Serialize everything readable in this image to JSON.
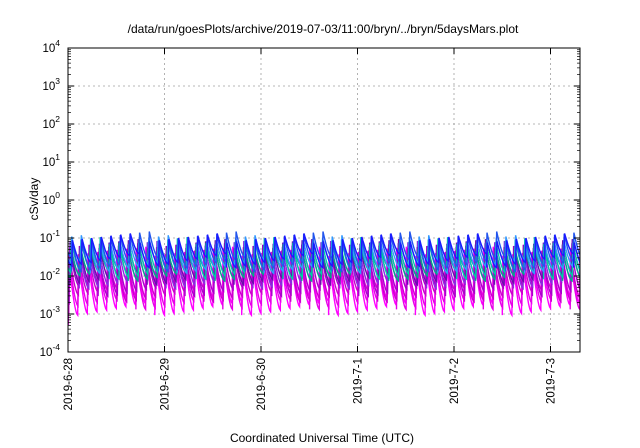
{
  "chart_data": {
    "type": "line",
    "title": "/data/run/goesPlots/archive/2019-07-03/11:00/bryn/../bryn/5daysMars.plot",
    "xlabel": "Coordinated Universal Time (UTC)",
    "ylabel": "cSv/day",
    "y_scale": "log",
    "ylim_exponents": [
      -4,
      4
    ],
    "y_tick_base": "10",
    "y_tick_exponents": [
      "4",
      "3",
      "2",
      "1",
      "0",
      "-1",
      "-2",
      "-3",
      "-4"
    ],
    "x_tick_labels": [
      "2019-6-28",
      "2019-6-29",
      "2019-6-30",
      "2019-7-1",
      "2019-7-2",
      "2019-7-3"
    ],
    "x_tick_day_offsets": [
      0,
      1,
      2,
      3,
      4,
      5
    ],
    "x_range_days": [
      0,
      5.5
    ],
    "grid": true,
    "legend": "none",
    "sawtooth_period_days": 0.1,
    "series": [
      {
        "color": "#ff00ff",
        "high_exponent": -1.35,
        "low_exponent": -2.85
      },
      {
        "color": "#e800e8",
        "high_exponent": -1.4,
        "low_exponent": -2.7
      },
      {
        "color": "#cc00cc",
        "high_exponent": -1.45,
        "low_exponent": -2.5
      },
      {
        "color": "#aa00cc",
        "high_exponent": -1.3,
        "low_exponent": -2.35
      },
      {
        "color": "#8a2be2",
        "high_exponent": -1.2,
        "low_exponent": -2.15
      },
      {
        "color": "#6a0dad",
        "high_exponent": -1.15,
        "low_exponent": -2.05
      },
      {
        "color": "#00aa88",
        "high_exponent": -1.25,
        "low_exponent": -1.95
      },
      {
        "color": "#00ccaa",
        "high_exponent": -1.1,
        "low_exponent": -1.9
      },
      {
        "color": "#3399ff",
        "high_exponent": -1.05,
        "low_exponent": -1.75
      },
      {
        "color": "#2255ee",
        "high_exponent": -0.95,
        "low_exponent": -1.7
      },
      {
        "color": "#1a1aff",
        "high_exponent": -1.0,
        "low_exponent": -1.6
      }
    ]
  }
}
